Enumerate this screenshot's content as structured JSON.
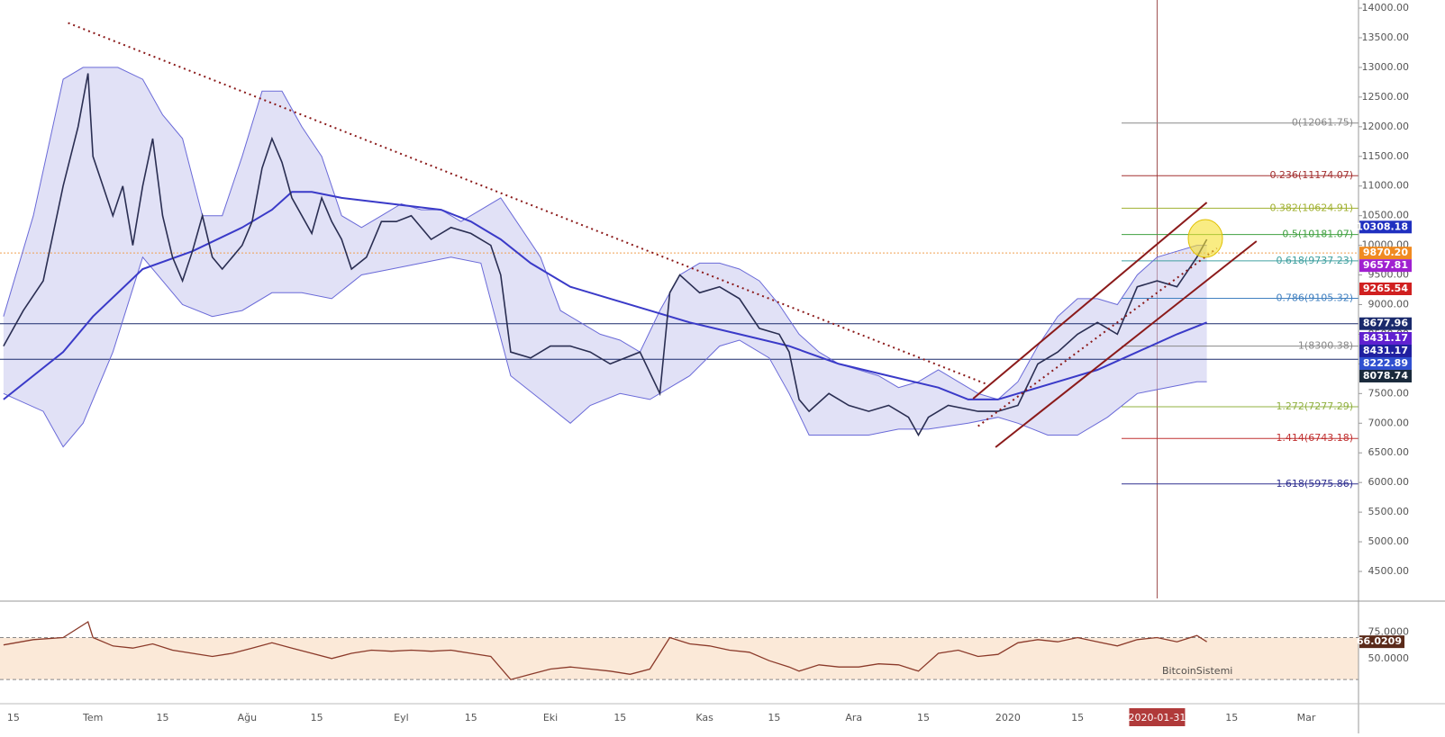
{
  "chart_data": {
    "type": "line",
    "xlim": [
      -18.7,
      254.5
    ],
    "xticks": [
      {
        "value": -16,
        "label": "15"
      },
      {
        "value": 0,
        "label": "Tem"
      },
      {
        "value": 14,
        "label": "15"
      },
      {
        "value": 31,
        "label": "Ağu"
      },
      {
        "value": 45,
        "label": "15"
      },
      {
        "value": 62,
        "label": "Eyl"
      },
      {
        "value": 76,
        "label": "15"
      },
      {
        "value": 92,
        "label": "Eki"
      },
      {
        "value": 106,
        "label": "15"
      },
      {
        "value": 123,
        "label": "Kas"
      },
      {
        "value": 137,
        "label": "15"
      },
      {
        "value": 153,
        "label": "Ara"
      },
      {
        "value": 167,
        "label": "15"
      },
      {
        "value": 184,
        "label": "2020"
      },
      {
        "value": 198,
        "label": "15"
      },
      {
        "value": 214,
        "label": "2020-01-31",
        "highlight": true
      },
      {
        "value": 229,
        "label": "15"
      },
      {
        "value": 244,
        "label": "Mar"
      }
    ],
    "ylim": [
      4045,
      14137
    ],
    "yticks": [
      {
        "value": 4500,
        "label": "4500.00"
      },
      {
        "value": 5000,
        "label": "5000.00"
      },
      {
        "value": 5500,
        "label": "5500.00"
      },
      {
        "value": 6000,
        "label": "6000.00"
      },
      {
        "value": 6500,
        "label": "6500.00"
      },
      {
        "value": 7000,
        "label": "7000.00"
      },
      {
        "value": 7500,
        "label": "7500.00"
      },
      {
        "value": 8000,
        "label": "8000.00"
      },
      {
        "value": 8500,
        "label": "8500.00"
      },
      {
        "value": 9000,
        "label": "9000.00"
      },
      {
        "value": 9500,
        "label": "9500.00"
      },
      {
        "value": 10000,
        "label": "10000.00"
      },
      {
        "value": 10500,
        "label": "10500.00"
      },
      {
        "value": 11000,
        "label": "11000.00"
      },
      {
        "value": 11500,
        "label": "11500.00"
      },
      {
        "value": 12000,
        "label": "12000.00"
      },
      {
        "value": 12500,
        "label": "12500.00"
      },
      {
        "value": 13000,
        "label": "13000.00"
      },
      {
        "value": 13500,
        "label": "13500.00"
      },
      {
        "value": 14000,
        "label": "14000.00"
      }
    ],
    "series": [
      {
        "name": "Upper band",
        "color": "#6a6ad8",
        "role": "band-upper",
        "x": [
          -18,
          -12,
          -6,
          -2,
          5,
          10,
          14,
          18,
          22,
          26,
          30,
          34,
          38,
          42,
          46,
          50,
          54,
          58,
          62,
          66,
          70,
          74,
          78,
          82,
          86,
          90,
          94,
          98,
          102,
          106,
          110,
          114,
          118,
          122,
          126,
          130,
          134,
          138,
          142,
          146,
          150,
          154,
          158,
          162,
          166,
          170,
          174,
          178,
          182,
          186,
          190,
          194,
          198,
          202,
          206,
          210,
          214,
          218,
          222,
          224
        ],
        "values": [
          8800,
          10500,
          12800,
          13000,
          13000,
          12800,
          12200,
          11800,
          10500,
          10500,
          11500,
          12600,
          12600,
          12000,
          11500,
          10500,
          10300,
          10500,
          10700,
          10600,
          10600,
          10400,
          10600,
          10800,
          10300,
          9800,
          8900,
          8700,
          8500,
          8400,
          8200,
          8900,
          9500,
          9700,
          9700,
          9600,
          9400,
          9000,
          8500,
          8200,
          8000,
          7900,
          7800,
          7600,
          7700,
          7900,
          7700,
          7500,
          7400,
          7700,
          8300,
          8800,
          9100,
          9100,
          9000,
          9500,
          9800,
          9900,
          10000,
          10000
        ]
      },
      {
        "name": "Lower band",
        "color": "#6a6ad8",
        "role": "band-lower",
        "x": [
          -18,
          -10,
          -6,
          -2,
          4,
          10,
          14,
          18,
          24,
          30,
          36,
          42,
          48,
          54,
          60,
          66,
          72,
          78,
          84,
          90,
          96,
          100,
          106,
          112,
          116,
          120,
          126,
          130,
          136,
          140,
          144,
          150,
          156,
          162,
          168,
          176,
          182,
          186,
          192,
          198,
          204,
          210,
          216,
          222,
          224
        ],
        "values": [
          7500,
          7200,
          6600,
          7000,
          8200,
          9800,
          9400,
          9000,
          8800,
          8900,
          9200,
          9200,
          9100,
          9500,
          9600,
          9700,
          9800,
          9700,
          7800,
          7400,
          7000,
          7300,
          7500,
          7400,
          7600,
          7800,
          8300,
          8400,
          8100,
          7500,
          6800,
          6800,
          6800,
          6900,
          6900,
          7000,
          7100,
          7000,
          6800,
          6800,
          7100,
          7500,
          7600,
          7700,
          7700
        ]
      },
      {
        "name": "MA",
        "color": "#3a3ac8",
        "role": "ma",
        "x": [
          -18,
          -6,
          0,
          10,
          20,
          30,
          36,
          40,
          44,
          50,
          60,
          70,
          76,
          82,
          88,
          96,
          104,
          112,
          120,
          130,
          140,
          150,
          160,
          170,
          176,
          182,
          186,
          194,
          202,
          210,
          218,
          224
        ],
        "values": [
          7400,
          8200,
          8800,
          9600,
          9900,
          10300,
          10600,
          10900,
          10900,
          10800,
          10700,
          10600,
          10400,
          10100,
          9700,
          9300,
          9100,
          8900,
          8700,
          8500,
          8300,
          8000,
          7800,
          7600,
          7400,
          7400,
          7500,
          7700,
          7900,
          8200,
          8500,
          8700
        ]
      },
      {
        "name": "Price",
        "color": "#2a2e52",
        "role": "price",
        "x": [
          -18,
          -14,
          -10,
          -6,
          -3,
          -1,
          0,
          2,
          4,
          6,
          8,
          10,
          12,
          14,
          16,
          18,
          20,
          22,
          24,
          26,
          28,
          30,
          32,
          34,
          36,
          38,
          40,
          44,
          46,
          48,
          50,
          52,
          55,
          58,
          61,
          64,
          68,
          72,
          76,
          80,
          82,
          84,
          88,
          92,
          96,
          100,
          104,
          110,
          114,
          116,
          118,
          122,
          126,
          130,
          134,
          138,
          140,
          142,
          144,
          148,
          152,
          156,
          160,
          164,
          166,
          168,
          172,
          178,
          182,
          186,
          190,
          194,
          198,
          202,
          206,
          210,
          214,
          218,
          222,
          224
        ],
        "values": [
          8300,
          8900,
          9400,
          11000,
          12000,
          12900,
          11500,
          11000,
          10500,
          11000,
          10000,
          11000,
          11800,
          10500,
          9800,
          9400,
          9900,
          10500,
          9800,
          9600,
          9800,
          10000,
          10400,
          11300,
          11800,
          11400,
          10800,
          10200,
          10800,
          10400,
          10100,
          9600,
          9800,
          10400,
          10400,
          10500,
          10100,
          10300,
          10200,
          10000,
          9500,
          8200,
          8100,
          8300,
          8300,
          8200,
          8000,
          8200,
          7500,
          9200,
          9500,
          9200,
          9300,
          9100,
          8600,
          8500,
          8200,
          7400,
          7200,
          7500,
          7300,
          7200,
          7300,
          7100,
          6800,
          7100,
          7300,
          7200,
          7200,
          7300,
          8000,
          8200,
          8500,
          8700,
          8500,
          9300,
          9400,
          9300,
          9800,
          10100
        ]
      }
    ],
    "trendlines": [
      {
        "x": [
          -5,
          180
        ],
        "values": [
          13750,
          7650
        ],
        "color": "#8b1a1a",
        "dash": true
      },
      {
        "x": [
          177,
          224
        ],
        "values": [
          7414,
          10722
        ],
        "color": "#8b1a1a",
        "dash": false
      },
      {
        "x": [
          181.5,
          234
        ],
        "values": [
          6595,
          10070
        ],
        "color": "#8b1a1a",
        "dash": false
      },
      {
        "x": [
          178,
          226
        ],
        "values": [
          6950,
          9950
        ],
        "color": "#8b1a1a",
        "dash": true
      }
    ],
    "hlines": [
      {
        "value": 8677.96,
        "color": "#1a2a6c"
      },
      {
        "value": 8078.74,
        "color": "#1a2a6c"
      },
      {
        "value": 9870.2,
        "color": "#f0a050",
        "dash": true
      }
    ],
    "fib_levels": [
      {
        "value": 12061.75,
        "label": "0(12061.75)",
        "color": "#888888"
      },
      {
        "value": 11174.07,
        "label": "0.236(11174.07)",
        "color": "#a33030"
      },
      {
        "value": 10624.91,
        "label": "0.382(10624.91)",
        "color": "#a0b030"
      },
      {
        "value": 10181.07,
        "label": "0.5(10181.07)",
        "color": "#40a040"
      },
      {
        "value": 9737.23,
        "label": "0.618(9737.23)",
        "color": "#40a0a0"
      },
      {
        "value": 9105.32,
        "label": "0.786(9105.32)",
        "color": "#4080c0"
      },
      {
        "value": 8300.38,
        "label": "1(8300.38)",
        "color": "#888888"
      },
      {
        "value": 7277.29,
        "label": "1.272(7277.29)",
        "color": "#90b040"
      },
      {
        "value": 6743.18,
        "label": "1.414(6743.18)",
        "color": "#c03030"
      },
      {
        "value": 5975.86,
        "label": "1.618(5975.86)",
        "color": "#303090"
      }
    ],
    "price_labels": [
      {
        "value": 10308.18,
        "label": "10308.18",
        "color": "#2030c0"
      },
      {
        "value": 9870.2,
        "label": "9870.20",
        "color": "#f08a20"
      },
      {
        "value": 9657.81,
        "label": "9657.81",
        "color": "#a020d0"
      },
      {
        "value": 9265.54,
        "label": "9265.54",
        "color": "#d02020"
      },
      {
        "value": 8677.96,
        "label": "8677.96",
        "color": "#1a2a6c"
      },
      {
        "value": 8431.17,
        "label": "8431.17",
        "color": "#6020d0"
      },
      {
        "value": 8431.17,
        "label": "8431.17",
        "color": "#2020a0"
      },
      {
        "value": 8222.89,
        "label": "8222.89",
        "color": "#3050d0"
      },
      {
        "value": 8078.74,
        "label": "8078.74",
        "color": "#1a2a3c"
      }
    ],
    "rsi": {
      "ylim": [
        7,
        103
      ],
      "yticks": [
        {
          "value": 75,
          "label": "75.0000"
        },
        {
          "value": 50,
          "label": "50.0000"
        }
      ],
      "bands": [
        70,
        30
      ],
      "color": "#8b3a2a",
      "x": [
        -18,
        -12,
        -6,
        -1,
        0,
        4,
        8,
        12,
        16,
        20,
        24,
        28,
        32,
        36,
        40,
        44,
        48,
        52,
        56,
        60,
        64,
        68,
        72,
        76,
        80,
        84,
        88,
        92,
        96,
        100,
        104,
        108,
        112,
        116,
        120,
        124,
        128,
        132,
        136,
        140,
        142,
        146,
        150,
        154,
        158,
        162,
        166,
        170,
        174,
        178,
        182,
        186,
        190,
        194,
        198,
        202,
        206,
        210,
        214,
        218,
        222,
        224
      ],
      "values": [
        63,
        68,
        70,
        85,
        70,
        62,
        60,
        64,
        58,
        55,
        52,
        55,
        60,
        65,
        60,
        55,
        50,
        55,
        58,
        57,
        58,
        57,
        58,
        55,
        52,
        30,
        35,
        40,
        42,
        40,
        38,
        35,
        40,
        70,
        64,
        62,
        58,
        56,
        48,
        42,
        38,
        44,
        42,
        42,
        45,
        44,
        38,
        55,
        58,
        52,
        54,
        65,
        68,
        66,
        70,
        66,
        62,
        68,
        70,
        66,
        72,
        66
      ],
      "value_label": {
        "value": 66.0209,
        "label": "66.0209"
      }
    },
    "watermark": "BitcoinSistemi"
  }
}
